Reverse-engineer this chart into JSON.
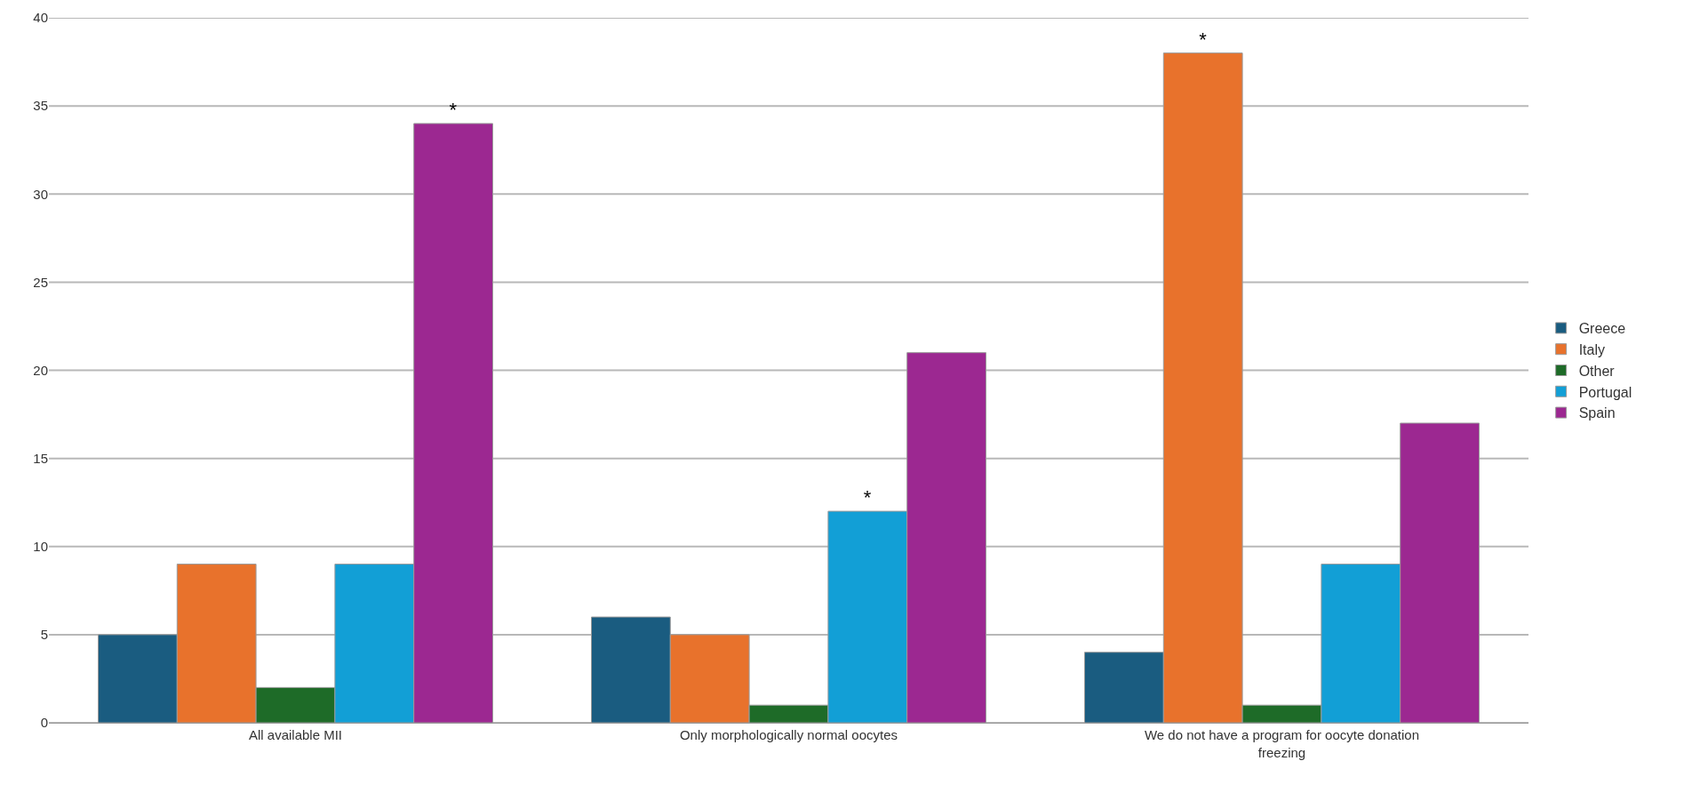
{
  "chart_data": {
    "type": "bar",
    "categories": [
      "All available MII",
      "Only morphologically normal oocytes",
      "We do not have a program for oocyte donation freezing"
    ],
    "series": [
      {
        "name": "Greece",
        "color": "#1a5c80",
        "values": [
          5,
          6,
          4
        ]
      },
      {
        "name": "Italy",
        "color": "#e8722c",
        "values": [
          9,
          5,
          38
        ],
        "value_labels": [
          null,
          null,
          "*"
        ]
      },
      {
        "name": "Other",
        "color": "#1e6b28",
        "values": [
          2,
          1,
          1
        ]
      },
      {
        "name": "Portugal",
        "color": "#129fd6",
        "values": [
          9,
          12,
          9
        ],
        "value_labels": [
          null,
          "*",
          null
        ]
      },
      {
        "name": "Spain",
        "color": "#9c2891",
        "values": [
          34,
          21,
          17
        ],
        "value_labels": [
          "*",
          null,
          null
        ]
      }
    ],
    "ylim": [
      0,
      40
    ],
    "yticks": [
      0,
      5,
      10,
      15,
      20,
      25,
      30,
      35,
      40
    ],
    "grid": "y",
    "legend": "right"
  }
}
